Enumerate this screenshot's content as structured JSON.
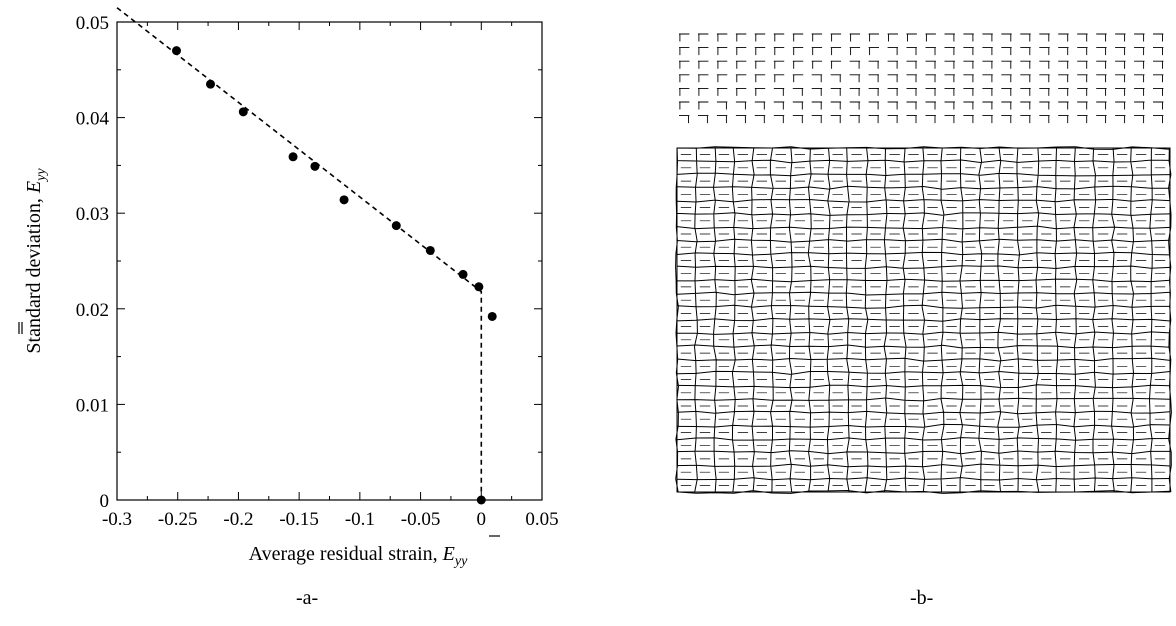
{
  "panel_labels": {
    "a": "-a-",
    "b": "-b-"
  },
  "axis_labels": {
    "ylabel_main": "Standard deviation, ",
    "ylabel_symbol": "E",
    "ylabel_sub": "yy",
    "xlabel_main": "Average residual strain, ",
    "xlabel_symbol": "E",
    "xlabel_sub": "yy"
  },
  "chart_data": [
    {
      "type": "scatter",
      "title": "",
      "xlabel": "Average residual strain, E̅yy",
      "ylabel": "Standard deviation, E̿yy",
      "xlim": [
        -0.3,
        0.05
      ],
      "ylim": [
        0,
        0.05
      ],
      "xticks": [
        "-0.3",
        "-0.25",
        "-0.2",
        "-0.15",
        "-0.1",
        "-0.05",
        "0",
        "0.05"
      ],
      "yticks": [
        "0",
        "0.01",
        "0.02",
        "0.03",
        "0.04",
        "0.05"
      ],
      "x_tick_values": [
        -0.3,
        -0.25,
        -0.2,
        -0.15,
        -0.1,
        -0.05,
        0,
        0.05
      ],
      "y_tick_values": [
        0,
        0.01,
        0.02,
        0.03,
        0.04,
        0.05
      ],
      "grid": false,
      "points": [
        {
          "x": -0.251,
          "y": 0.047
        },
        {
          "x": -0.223,
          "y": 0.0435
        },
        {
          "x": -0.196,
          "y": 0.0406
        },
        {
          "x": -0.155,
          "y": 0.0359
        },
        {
          "x": -0.137,
          "y": 0.0349
        },
        {
          "x": -0.113,
          "y": 0.0314
        },
        {
          "x": -0.07,
          "y": 0.0287
        },
        {
          "x": -0.042,
          "y": 0.0261
        },
        {
          "x": -0.015,
          "y": 0.0236
        },
        {
          "x": -0.002,
          "y": 0.0223
        },
        {
          "x": 0.009,
          "y": 0.0192
        },
        {
          "x": 0.0,
          "y": 0.0
        }
      ],
      "fit_line": [
        {
          "x": -0.3,
          "y": 0.0515
        },
        {
          "x": 0.0,
          "y": 0.0218
        },
        {
          "x": 0.0,
          "y": 0.0
        }
      ]
    },
    {
      "type": "mesh",
      "description_free": true,
      "upper_region_rows": 7,
      "lower_region_rows": 26,
      "columns": 26
    }
  ]
}
